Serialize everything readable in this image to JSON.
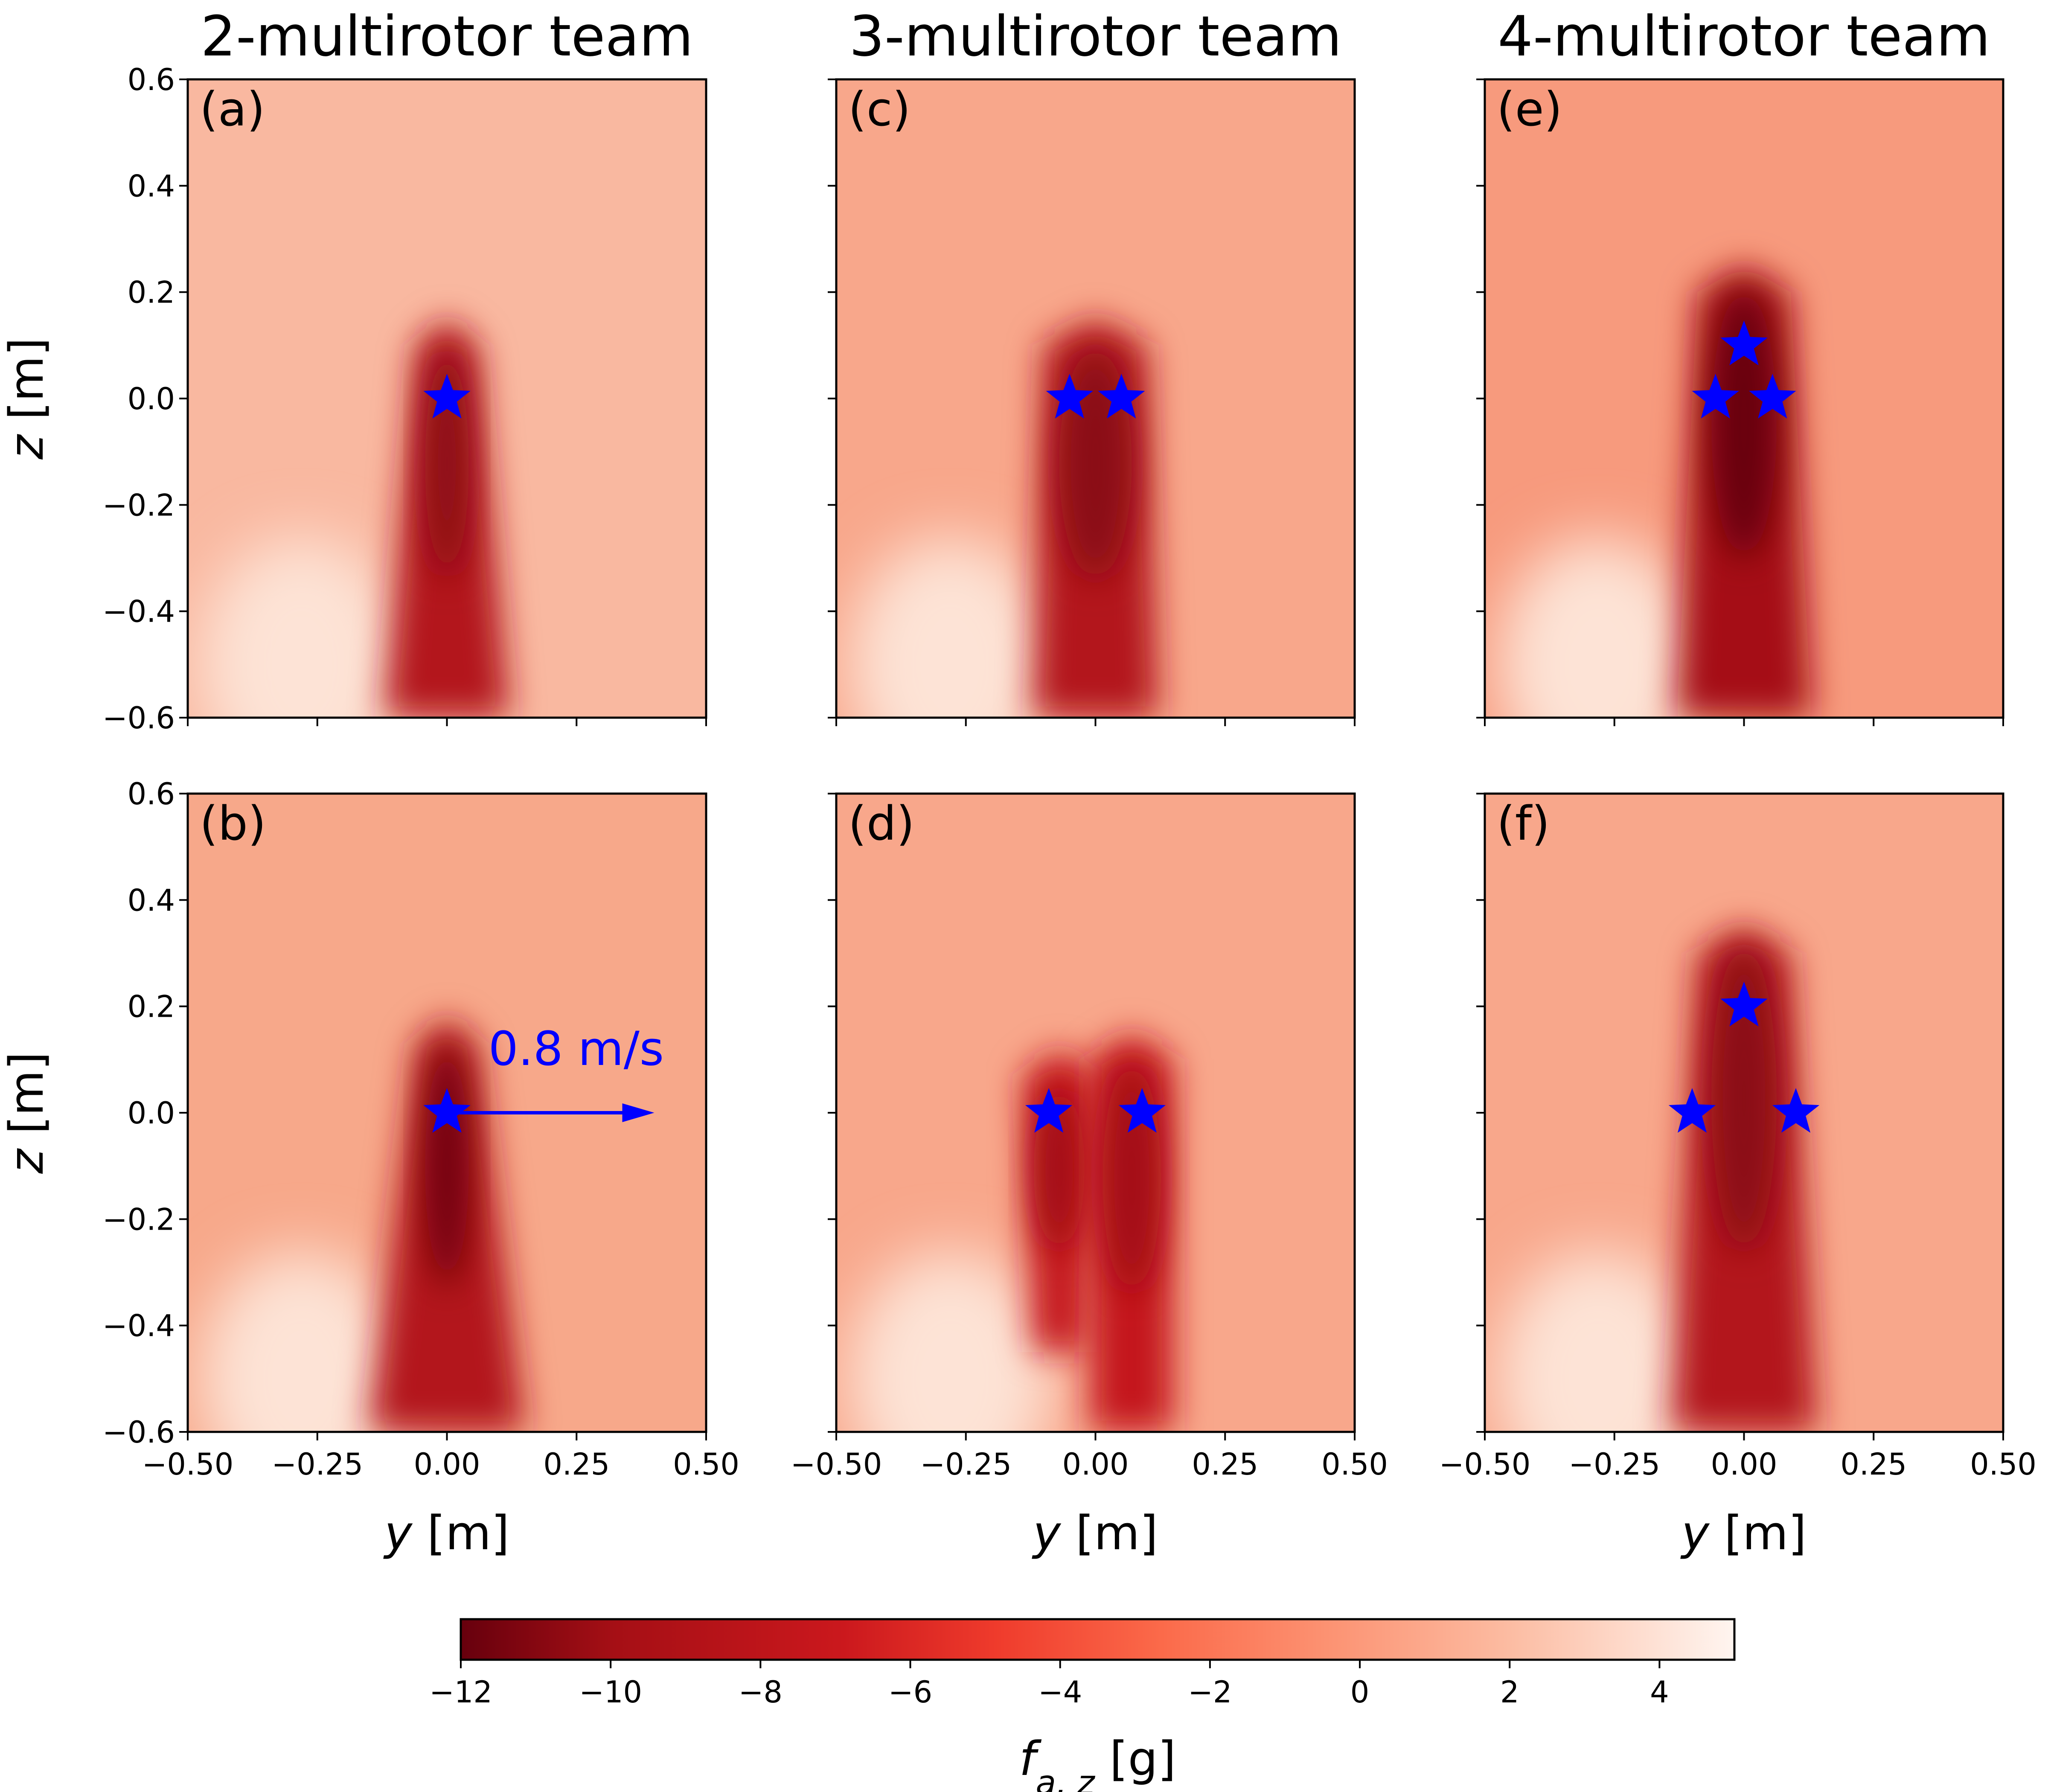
{
  "chart_data": {
    "type": "heatmap",
    "columns": [
      {
        "title": "2-multirotor team"
      },
      {
        "title": "3-multirotor team"
      },
      {
        "title": "4-multirotor team"
      }
    ],
    "x_ticks": [
      "−0.50",
      "−0.25",
      "0.00",
      "0.25",
      "0.50"
    ],
    "y_ticks": [
      "0.6",
      "0.4",
      "0.2",
      "0.0",
      "−0.2",
      "−0.4",
      "−0.6"
    ],
    "xlabel_var": "y",
    "xlabel_unit": " [m]",
    "ylabel_var": "z",
    "ylabel_unit": " [m]",
    "xlim": [
      -0.5,
      0.5
    ],
    "ylim": [
      -0.6,
      0.6
    ],
    "panels": [
      {
        "label": "(a)",
        "row": 0,
        "col": 0,
        "background": "#f9b8a0",
        "stars": [
          [
            0.0,
            0.0
          ]
        ],
        "plumes": [
          {
            "x": 0.0,
            "top": 0.15,
            "bottom": -0.6,
            "wtop": 0.12,
            "wbot": 0.24,
            "color": "#b3151b",
            "core": "#8a0c12"
          }
        ]
      },
      {
        "label": "(b)",
        "row": 1,
        "col": 0,
        "background": "#f7a88a",
        "stars": [
          [
            0.0,
            0.0
          ]
        ],
        "plumes": [
          {
            "x": 0.0,
            "top": 0.18,
            "bottom": -0.6,
            "wtop": 0.12,
            "wbot": 0.3,
            "color": "#b3151b",
            "core": "#6e0510"
          }
        ],
        "arrow": {
          "from": [
            0.0,
            0.0
          ],
          "to": [
            0.4,
            0.0
          ],
          "label": "0.8 m/s"
        }
      },
      {
        "label": "(c)",
        "row": 0,
        "col": 1,
        "background": "#f8a78b",
        "stars": [
          [
            -0.05,
            0.0
          ],
          [
            0.05,
            0.0
          ]
        ],
        "plumes": [
          {
            "x": 0.0,
            "top": 0.15,
            "bottom": -0.6,
            "wtop": 0.2,
            "wbot": 0.24,
            "color": "#b3151b",
            "core": "#8a0c12"
          }
        ]
      },
      {
        "label": "(d)",
        "row": 1,
        "col": 1,
        "background": "#f8a78b",
        "stars": [
          [
            -0.09,
            0.0
          ],
          [
            0.09,
            0.0
          ]
        ],
        "plumes": [
          {
            "x": -0.07,
            "top": 0.12,
            "bottom": -0.45,
            "wtop": 0.14,
            "wbot": 0.1,
            "color": "#c4191f",
            "core": "#a30f15"
          },
          {
            "x": 0.07,
            "top": 0.15,
            "bottom": -0.6,
            "wtop": 0.16,
            "wbot": 0.16,
            "color": "#c4191f",
            "core": "#a30f15"
          }
        ]
      },
      {
        "label": "(e)",
        "row": 0,
        "col": 2,
        "background": "#f79a7d",
        "stars": [
          [
            0.0,
            0.1
          ],
          [
            -0.055,
            0.0
          ],
          [
            0.055,
            0.0
          ]
        ],
        "plumes": [
          {
            "x": 0.0,
            "top": 0.25,
            "bottom": -0.6,
            "wtop": 0.18,
            "wbot": 0.26,
            "color": "#a50f15",
            "core": "#67000d"
          }
        ]
      },
      {
        "label": "(f)",
        "row": 1,
        "col": 2,
        "background": "#f8a78b",
        "stars": [
          [
            0.0,
            0.2
          ],
          [
            -0.1,
            0.0
          ],
          [
            0.1,
            0.0
          ]
        ],
        "plumes": [
          {
            "x": 0.0,
            "top": 0.35,
            "bottom": -0.6,
            "wtop": 0.18,
            "wbot": 0.28,
            "color": "#b3151b",
            "core": "#8a0c12"
          }
        ]
      }
    ],
    "colorbar": {
      "label_var": "f",
      "label_sub": "a, z",
      "label_unit": " [g]",
      "ticks": [
        -12,
        -10,
        -8,
        -6,
        -4,
        -2,
        0,
        2,
        4
      ],
      "tick_labels": [
        "−12",
        "−10",
        "−8",
        "−6",
        "−4",
        "−2",
        "0",
        "2",
        "4"
      ],
      "range": [
        -12,
        5
      ],
      "colormap": "Reds_r"
    }
  }
}
